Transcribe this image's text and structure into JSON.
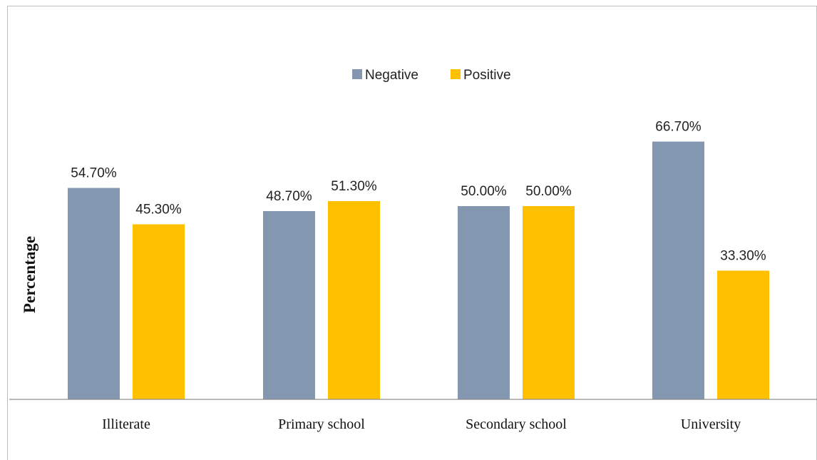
{
  "chart_data": {
    "type": "bar",
    "title": "",
    "xlabel": "",
    "ylabel": "Percentage",
    "categories": [
      "Illiterate",
      "Primary school",
      "Secondary school",
      "University"
    ],
    "series": [
      {
        "name": "Negative",
        "color": "#8497b0",
        "values": [
          54.7,
          48.7,
          50.0,
          66.7
        ],
        "labels": [
          "54.70%",
          "48.70%",
          "50.00%",
          "66.70%"
        ]
      },
      {
        "name": "Positive",
        "color": "#ffc000",
        "values": [
          45.3,
          51.3,
          50.0,
          33.3
        ],
        "labels": [
          "45.30%",
          "51.30%",
          "50.00%",
          "33.30%"
        ]
      }
    ],
    "ylim": [
      0,
      80
    ],
    "grid": false,
    "legend": "top-center"
  }
}
